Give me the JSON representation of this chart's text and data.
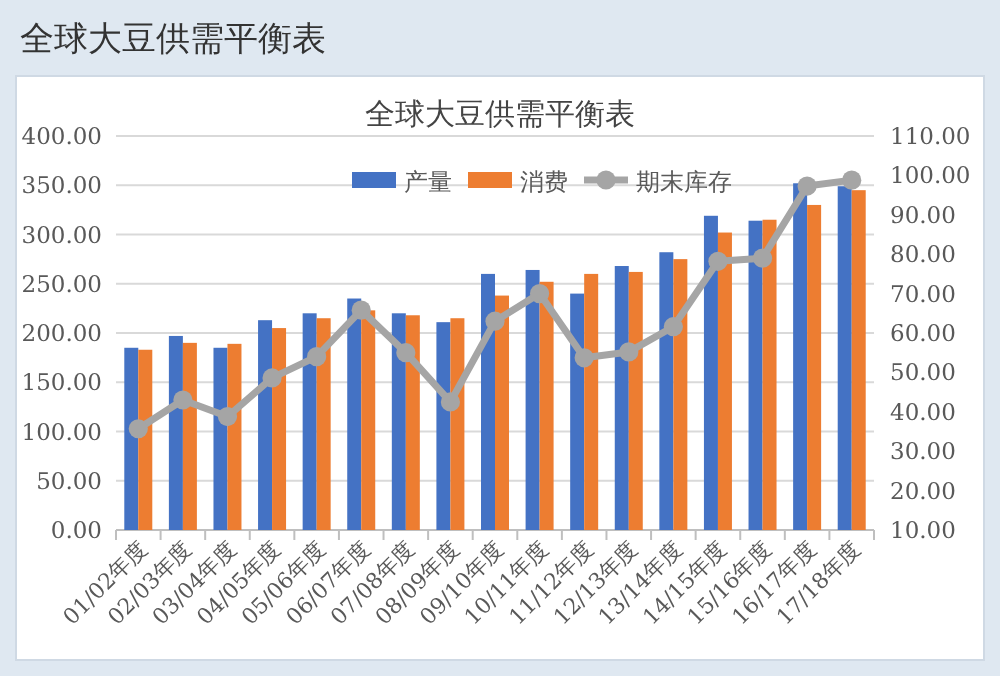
{
  "chart_data": {
    "type": "bar",
    "title": "全球大豆供需平衡表",
    "subtitle": "全球大豆供需平衡表",
    "categories": [
      "01/02年度",
      "02/03年度",
      "03/04年度",
      "04/05年度",
      "05/06年度",
      "06/07年度",
      "07/08年度",
      "08/09年度",
      "09/10年度",
      "10/11年度",
      "11/12年度",
      "12/13年度",
      "13/14年度",
      "14/15年度",
      "15/16年度",
      "16/17年度",
      "17/18年度"
    ],
    "series": [
      {
        "name": "产量",
        "color": "#4472c4",
        "values": [
          185,
          197,
          185,
          213,
          220,
          235,
          220,
          211,
          260,
          264,
          240,
          268,
          282,
          319,
          314,
          352,
          349
        ]
      },
      {
        "name": "消费",
        "color": "#ed7d31",
        "values": [
          183,
          190,
          189,
          205,
          215,
          223,
          218,
          215,
          238,
          252,
          260,
          262,
          275,
          302,
          315,
          330,
          345
        ]
      },
      {
        "name": "期末库存",
        "type": "line",
        "axis": "y2",
        "marker": "circle",
        "color": "#a5a5a5",
        "values": [
          35.7,
          43,
          38.8,
          48.6,
          54,
          65.8,
          55,
          42.5,
          63,
          70,
          53.7,
          55.2,
          61.6,
          78.2,
          79,
          97.3,
          98.8
        ]
      }
    ],
    "ylim": [
      0,
      400
    ],
    "yticks": [
      {
        "value": 0,
        "label": "0.00"
      },
      {
        "value": 50,
        "label": "50.00"
      },
      {
        "value": 100,
        "label": "100.00"
      },
      {
        "value": 150,
        "label": "150.00"
      },
      {
        "value": 200,
        "label": "200.00"
      },
      {
        "value": 250,
        "label": "250.00"
      },
      {
        "value": 300,
        "label": "300.00"
      },
      {
        "value": 350,
        "label": "350.00"
      },
      {
        "value": 400,
        "label": "400.00"
      }
    ],
    "y2lim": [
      10,
      110
    ],
    "y2ticks": [
      {
        "value": 10,
        "label": "10.00"
      },
      {
        "value": 20,
        "label": "20.00"
      },
      {
        "value": 30,
        "label": "30.00"
      },
      {
        "value": 40,
        "label": "40.00"
      },
      {
        "value": 50,
        "label": "50.00"
      },
      {
        "value": 60,
        "label": "60.00"
      },
      {
        "value": 70,
        "label": "70.00"
      },
      {
        "value": 80,
        "label": "80.00"
      },
      {
        "value": 90,
        "label": "90.00"
      },
      {
        "value": 100,
        "label": "100.00"
      },
      {
        "value": 110,
        "label": "110.00"
      }
    ],
    "grid": "y",
    "legend": "top"
  }
}
